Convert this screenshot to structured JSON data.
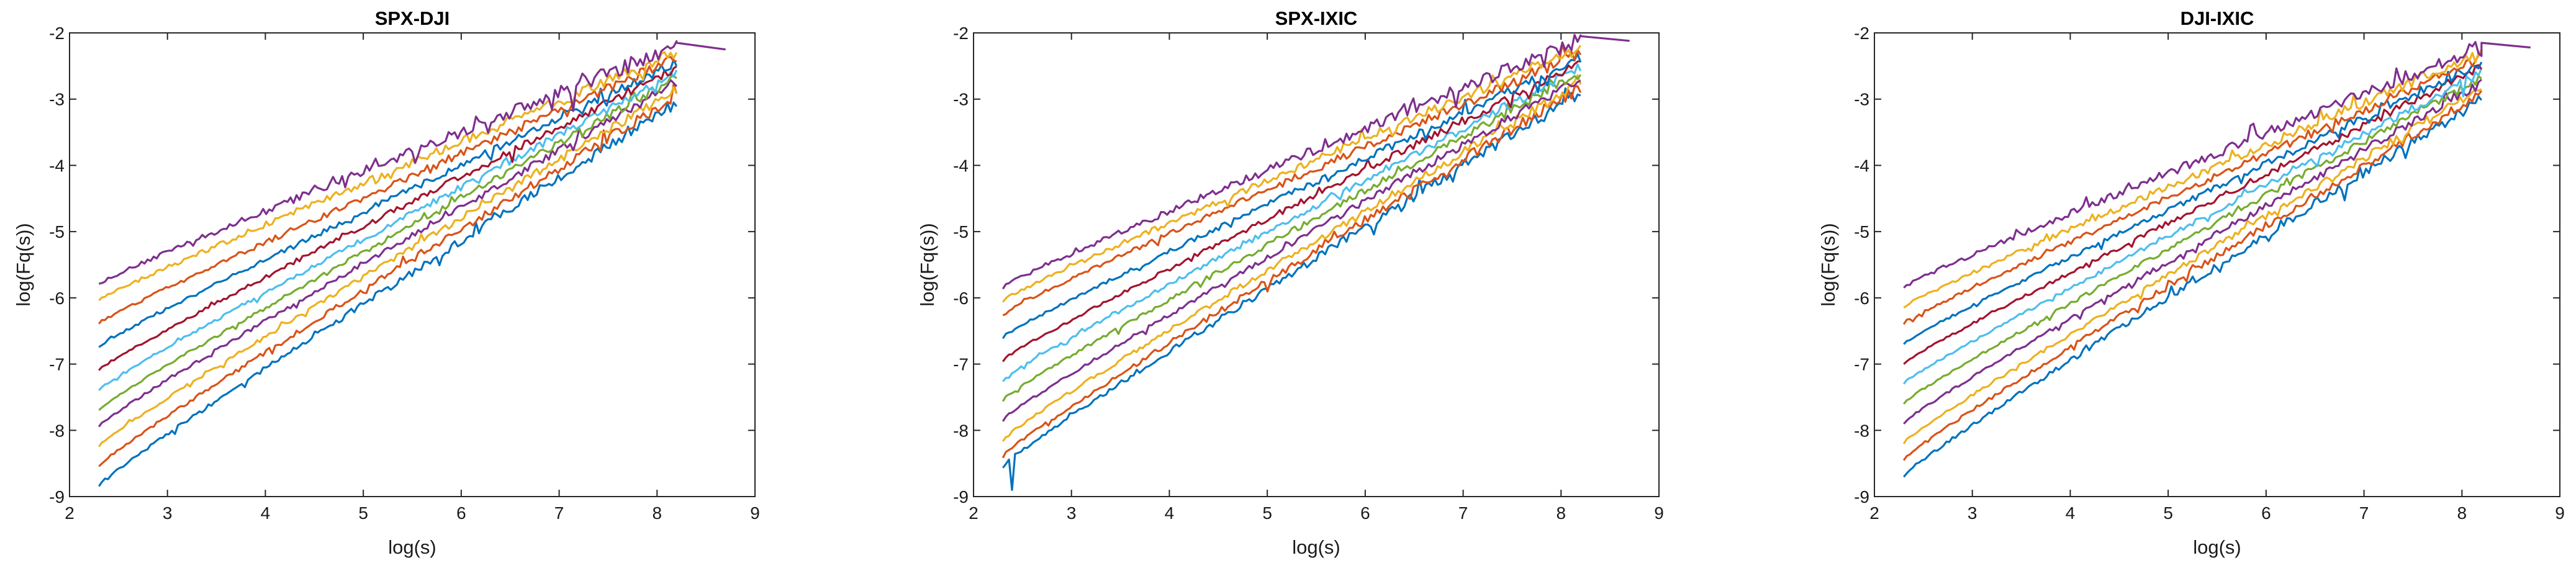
{
  "figure": {
    "series_colors": [
      "#0072BD",
      "#D95319",
      "#EDB120",
      "#7E2F8E",
      "#77AC30",
      "#4DBEEE",
      "#A2142F",
      "#0072BD",
      "#D95319",
      "#EDB120",
      "#7E2F8E"
    ]
  },
  "chart_data": [
    {
      "type": "line",
      "title": "SPX-DJI",
      "xlabel": "log(s)",
      "ylabel": "log(Fq(s))",
      "xlim": [
        2,
        9
      ],
      "ylim": [
        -9,
        -2
      ],
      "xticks": [
        "2",
        "3",
        "4",
        "5",
        "6",
        "7",
        "8",
        "9"
      ],
      "yticks": [
        "-9",
        "-8",
        "-7",
        "-6",
        "-5",
        "-4",
        "-3",
        "-2"
      ],
      "grid": false,
      "x_start": 2.3,
      "x_end": 8.2,
      "series": [
        {
          "start": -8.85,
          "end": -3.05,
          "noise": 0.12
        },
        {
          "start": -8.55,
          "end": -2.95,
          "noise": 0.11
        },
        {
          "start": -8.25,
          "end": -2.85,
          "noise": 0.1
        },
        {
          "start": -7.95,
          "end": -2.75,
          "noise": 0.1
        },
        {
          "start": -7.7,
          "end": -2.68,
          "noise": 0.09
        },
        {
          "start": -7.4,
          "end": -2.6,
          "noise": 0.09
        },
        {
          "start": -7.1,
          "end": -2.52,
          "noise": 0.09
        },
        {
          "start": -6.75,
          "end": -2.45,
          "noise": 0.1
        },
        {
          "start": -6.4,
          "end": -2.38,
          "noise": 0.12
        },
        {
          "start": -6.05,
          "end": -2.3,
          "noise": 0.14
        },
        {
          "start": -5.8,
          "end": -2.2,
          "noise": 0.16,
          "tail": [
            [
              8.2,
              -2.15
            ],
            [
              8.7,
              -2.25
            ]
          ]
        }
      ]
    },
    {
      "type": "line",
      "title": "SPX-IXIC",
      "xlabel": "log(s)",
      "ylabel": "log(Fq(s))",
      "xlim": [
        2,
        9
      ],
      "ylim": [
        -9,
        -2
      ],
      "xticks": [
        "2",
        "3",
        "4",
        "5",
        "6",
        "7",
        "8",
        "9"
      ],
      "yticks": [
        "-9",
        "-8",
        "-7",
        "-6",
        "-5",
        "-4",
        "-3",
        "-2"
      ],
      "grid": false,
      "x_start": 2.3,
      "x_end": 8.2,
      "series": [
        {
          "start": -8.55,
          "end": -2.9,
          "noise": 0.13,
          "dip": -8.9
        },
        {
          "start": -8.4,
          "end": -2.82,
          "noise": 0.12
        },
        {
          "start": -8.15,
          "end": -2.75,
          "noise": 0.11
        },
        {
          "start": -7.85,
          "end": -2.68,
          "noise": 0.1
        },
        {
          "start": -7.55,
          "end": -2.6,
          "noise": 0.1
        },
        {
          "start": -7.25,
          "end": -2.52,
          "noise": 0.1
        },
        {
          "start": -6.95,
          "end": -2.45,
          "noise": 0.1
        },
        {
          "start": -6.6,
          "end": -2.38,
          "noise": 0.11
        },
        {
          "start": -6.25,
          "end": -2.3,
          "noise": 0.12
        },
        {
          "start": -6.05,
          "end": -2.22,
          "noise": 0.13
        },
        {
          "start": -5.85,
          "end": -2.1,
          "noise": 0.15,
          "tail": [
            [
              8.2,
              -2.05
            ],
            [
              8.7,
              -2.12
            ]
          ]
        }
      ]
    },
    {
      "type": "line",
      "title": "DJI-IXIC",
      "xlabel": "log(s)",
      "ylabel": "log(Fq(s))",
      "xlim": [
        2,
        9
      ],
      "ylim": [
        -9,
        -2
      ],
      "xticks": [
        "2",
        "3",
        "4",
        "5",
        "6",
        "7",
        "8",
        "9"
      ],
      "yticks": [
        "-9",
        "-8",
        "-7",
        "-6",
        "-5",
        "-4",
        "-3",
        "-2"
      ],
      "grid": false,
      "x_start": 2.3,
      "x_end": 8.2,
      "series": [
        {
          "start": -8.7,
          "end": -3.0,
          "noise": 0.12
        },
        {
          "start": -8.45,
          "end": -2.92,
          "noise": 0.11
        },
        {
          "start": -8.2,
          "end": -2.84,
          "noise": 0.1
        },
        {
          "start": -7.9,
          "end": -2.76,
          "noise": 0.1
        },
        {
          "start": -7.6,
          "end": -2.68,
          "noise": 0.09
        },
        {
          "start": -7.3,
          "end": -2.6,
          "noise": 0.09
        },
        {
          "start": -7.0,
          "end": -2.52,
          "noise": 0.09
        },
        {
          "start": -6.7,
          "end": -2.45,
          "noise": 0.1
        },
        {
          "start": -6.4,
          "end": -2.38,
          "noise": 0.11
        },
        {
          "start": -6.15,
          "end": -2.3,
          "noise": 0.13
        },
        {
          "start": -5.85,
          "end": -2.2,
          "noise": 0.15,
          "tail": [
            [
              8.2,
              -2.15
            ],
            [
              8.7,
              -2.22
            ]
          ]
        }
      ]
    }
  ]
}
